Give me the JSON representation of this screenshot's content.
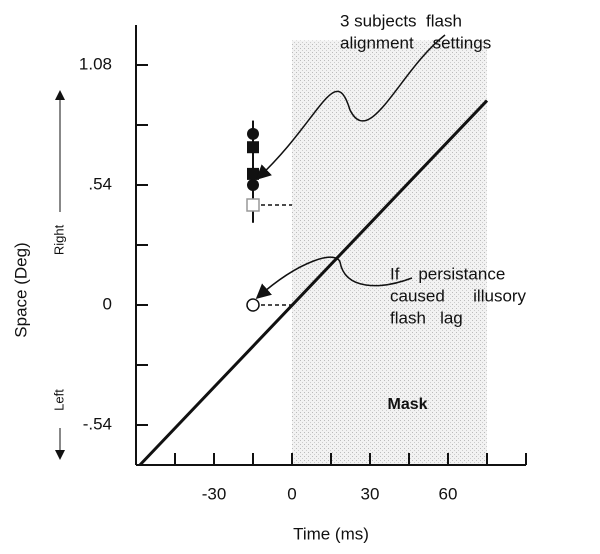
{
  "chart_data": {
    "type": "scatter",
    "x_label": "Time (ms)",
    "y_label": "Space (Deg)",
    "y_direction_labels": [
      "Right",
      "Left"
    ],
    "xlim": [
      -60,
      90
    ],
    "xticks": [
      -30,
      0,
      30,
      60
    ],
    "x_minor_ticks": [
      -45,
      -15,
      15,
      45,
      75,
      90
    ],
    "ylim": [
      -0.72,
      1.26
    ],
    "yticks": [
      {
        "value": -0.54,
        "label": "-.54"
      },
      0,
      {
        "value": 0.54,
        "label": ".54"
      },
      1.08
    ],
    "y_minor_ticks": [
      -0.27,
      0.27,
      0.81
    ],
    "mask": {
      "label": "Mask",
      "x": [
        0,
        75
      ],
      "y": [
        -0.72,
        1.19
      ]
    },
    "line": {
      "x": [
        -58.5,
        75
      ],
      "y": [
        -0.72,
        0.92
      ],
      "color": "#111"
    },
    "error_bar": {
      "x": -15,
      "low": 0.37,
      "high": 0.83
    },
    "points": [
      {
        "x": -15,
        "y": 0.77,
        "marker": "circle",
        "color": "#111"
      },
      {
        "x": -15,
        "y": 0.71,
        "marker": "square",
        "color": "#111"
      },
      {
        "x": -15,
        "y": 0.59,
        "marker": "square",
        "color": "#111"
      },
      {
        "x": -15,
        "y": 0.54,
        "marker": "circle",
        "color": "#111"
      },
      {
        "x": -15,
        "y": 0.45,
        "marker": "open-square",
        "color": "#999"
      },
      {
        "x": -15,
        "y": 0,
        "marker": "open-circle",
        "color": "#111"
      }
    ],
    "annotations": [
      {
        "lines": [
          "3 subjects  flash",
          "alignment    settings"
        ]
      },
      {
        "lines": [
          "If    persistance",
          "caused      illusory",
          "flash   lag"
        ]
      }
    ]
  }
}
